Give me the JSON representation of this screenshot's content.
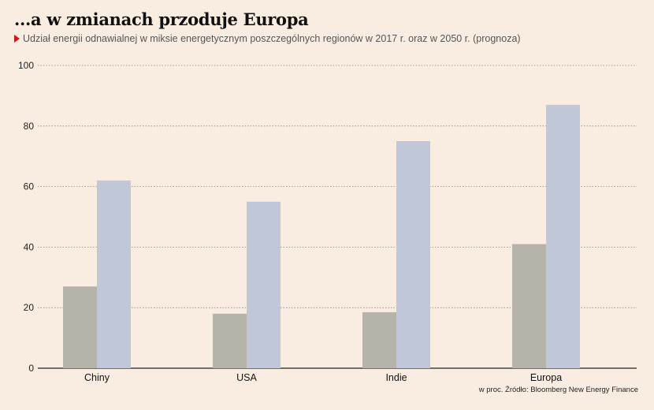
{
  "title": "...a w zmianach przoduje Europa",
  "subtitle": "Udział energii odnawialnej w miksie energetycznym poszczególnych regionów w 2017 r. oraz w 2050 r. (prognoza)",
  "source": "w proc. Źródło: Bloomberg New Energy Finance",
  "colors": {
    "background": "#f9ede1",
    "series_2017": "#b6b4aa",
    "series_2050": "#c0c7d8",
    "accent": "#d0121b"
  },
  "chart_data": {
    "type": "bar",
    "categories": [
      "Chiny",
      "USA",
      "Indie",
      "Europa"
    ],
    "series": [
      {
        "values": [
          27,
          18,
          18.5,
          41
        ]
      },
      {
        "values": [
          62,
          55,
          75,
          87
        ]
      }
    ],
    "yticks": [
      "0",
      "20",
      "40",
      "60",
      "80",
      "100"
    ],
    "ylim": [
      0,
      100
    ],
    "grid": true,
    "unit": "w proc."
  }
}
